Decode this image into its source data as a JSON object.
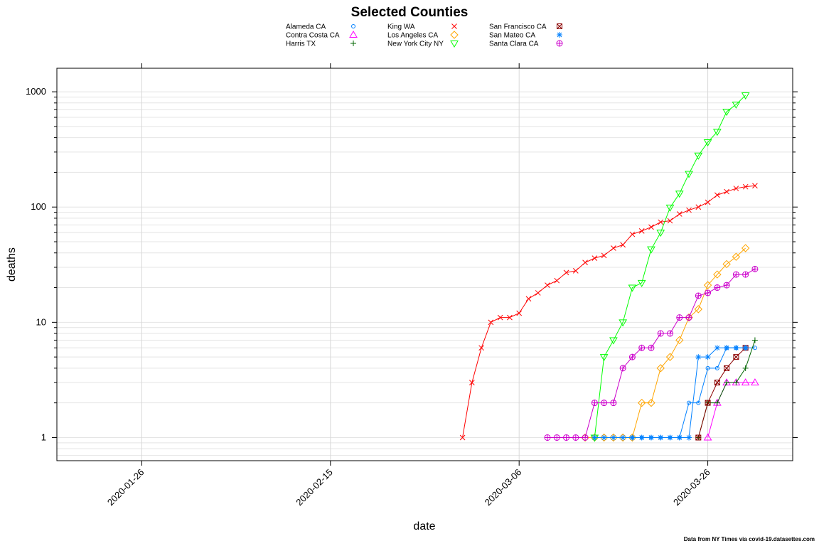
{
  "chart_data": {
    "type": "line",
    "title": "Selected Counties",
    "xlabel": "date",
    "ylabel": "deaths",
    "y_scale": "log",
    "ylim": [
      0.63,
      1600
    ],
    "x_domain": [
      "2020-01-17",
      "2020-04-04"
    ],
    "x_ticks": [
      "2020-01-26",
      "2020-02-15",
      "2020-03-06",
      "2020-03-26"
    ],
    "y_ticks": [
      1,
      10,
      100,
      1000
    ],
    "grid": true,
    "legend_position": "top",
    "source_note": "Data from NY Times via covid-19.datasettes.com",
    "series": [
      {
        "name": "Alameda CA",
        "color": "#0080ff",
        "marker": "circle",
        "points": [
          [
            "2020-03-18",
            1
          ],
          [
            "2020-03-19",
            1
          ],
          [
            "2020-03-20",
            1
          ],
          [
            "2020-03-21",
            1
          ],
          [
            "2020-03-22",
            1
          ],
          [
            "2020-03-23",
            1
          ],
          [
            "2020-03-24",
            2
          ],
          [
            "2020-03-25",
            2
          ],
          [
            "2020-03-26",
            4
          ],
          [
            "2020-03-27",
            4
          ],
          [
            "2020-03-28",
            6
          ],
          [
            "2020-03-29",
            6
          ],
          [
            "2020-03-30",
            6
          ],
          [
            "2020-03-31",
            6
          ]
        ]
      },
      {
        "name": "Contra Costa CA",
        "color": "#ff00ff",
        "marker": "triangle-up",
        "points": [
          [
            "2020-03-26",
            1
          ],
          [
            "2020-03-27",
            2
          ],
          [
            "2020-03-28",
            3
          ],
          [
            "2020-03-29",
            3
          ],
          [
            "2020-03-30",
            3
          ],
          [
            "2020-03-31",
            3
          ]
        ]
      },
      {
        "name": "Harris TX",
        "color": "#006400",
        "marker": "plus",
        "points": [
          [
            "2020-03-25",
            1
          ],
          [
            "2020-03-26",
            2
          ],
          [
            "2020-03-27",
            2
          ],
          [
            "2020-03-28",
            3
          ],
          [
            "2020-03-29",
            3
          ],
          [
            "2020-03-30",
            4
          ],
          [
            "2020-03-31",
            7
          ]
        ]
      },
      {
        "name": "King WA",
        "color": "#ff0000",
        "marker": "cross",
        "points": [
          [
            "2020-02-29",
            1
          ],
          [
            "2020-03-01",
            3
          ],
          [
            "2020-03-02",
            6
          ],
          [
            "2020-03-03",
            10
          ],
          [
            "2020-03-04",
            11
          ],
          [
            "2020-03-05",
            11
          ],
          [
            "2020-03-06",
            12
          ],
          [
            "2020-03-07",
            16
          ],
          [
            "2020-03-08",
            18
          ],
          [
            "2020-03-09",
            21
          ],
          [
            "2020-03-10",
            23
          ],
          [
            "2020-03-11",
            27
          ],
          [
            "2020-03-12",
            28
          ],
          [
            "2020-03-13",
            33
          ],
          [
            "2020-03-14",
            36
          ],
          [
            "2020-03-15",
            38
          ],
          [
            "2020-03-16",
            44
          ],
          [
            "2020-03-17",
            47
          ],
          [
            "2020-03-18",
            58
          ],
          [
            "2020-03-19",
            62
          ],
          [
            "2020-03-20",
            67
          ],
          [
            "2020-03-21",
            74
          ],
          [
            "2020-03-22",
            76
          ],
          [
            "2020-03-23",
            87
          ],
          [
            "2020-03-24",
            94
          ],
          [
            "2020-03-25",
            100
          ],
          [
            "2020-03-26",
            110
          ],
          [
            "2020-03-27",
            127
          ],
          [
            "2020-03-28",
            136
          ],
          [
            "2020-03-29",
            145
          ],
          [
            "2020-03-30",
            150
          ],
          [
            "2020-03-31",
            153
          ]
        ]
      },
      {
        "name": "Los Angeles CA",
        "color": "#ffa500",
        "marker": "diamond",
        "points": [
          [
            "2020-03-13",
            1
          ],
          [
            "2020-03-14",
            1
          ],
          [
            "2020-03-15",
            1
          ],
          [
            "2020-03-16",
            1
          ],
          [
            "2020-03-17",
            1
          ],
          [
            "2020-03-18",
            1
          ],
          [
            "2020-03-19",
            2
          ],
          [
            "2020-03-20",
            2
          ],
          [
            "2020-03-21",
            4
          ],
          [
            "2020-03-22",
            5
          ],
          [
            "2020-03-23",
            7
          ],
          [
            "2020-03-24",
            11
          ],
          [
            "2020-03-25",
            13
          ],
          [
            "2020-03-26",
            21
          ],
          [
            "2020-03-27",
            26
          ],
          [
            "2020-03-28",
            32
          ],
          [
            "2020-03-29",
            37
          ],
          [
            "2020-03-30",
            44
          ]
        ]
      },
      {
        "name": "New York City NY",
        "color": "#00ff00",
        "marker": "triangle-down",
        "points": [
          [
            "2020-03-14",
            1
          ],
          [
            "2020-03-15",
            5
          ],
          [
            "2020-03-16",
            7
          ],
          [
            "2020-03-17",
            10
          ],
          [
            "2020-03-18",
            20
          ],
          [
            "2020-03-19",
            22
          ],
          [
            "2020-03-20",
            43
          ],
          [
            "2020-03-21",
            60
          ],
          [
            "2020-03-22",
            99
          ],
          [
            "2020-03-23",
            131
          ],
          [
            "2020-03-24",
            194
          ],
          [
            "2020-03-25",
            280
          ],
          [
            "2020-03-26",
            365
          ],
          [
            "2020-03-27",
            450
          ],
          [
            "2020-03-28",
            672
          ],
          [
            "2020-03-29",
            776
          ],
          [
            "2020-03-30",
            932
          ]
        ]
      },
      {
        "name": "San Francisco CA",
        "color": "#8b0000",
        "marker": "boxed-x",
        "points": [
          [
            "2020-03-25",
            1
          ],
          [
            "2020-03-26",
            2
          ],
          [
            "2020-03-27",
            3
          ],
          [
            "2020-03-28",
            4
          ],
          [
            "2020-03-29",
            5
          ],
          [
            "2020-03-30",
            6
          ]
        ]
      },
      {
        "name": "San Mateo CA",
        "color": "#0080ff",
        "marker": "asterisk",
        "points": [
          [
            "2020-03-14",
            1
          ],
          [
            "2020-03-15",
            1
          ],
          [
            "2020-03-16",
            1
          ],
          [
            "2020-03-17",
            1
          ],
          [
            "2020-03-18",
            1
          ],
          [
            "2020-03-19",
            1
          ],
          [
            "2020-03-20",
            1
          ],
          [
            "2020-03-21",
            1
          ],
          [
            "2020-03-22",
            1
          ],
          [
            "2020-03-23",
            1
          ],
          [
            "2020-03-24",
            1
          ],
          [
            "2020-03-25",
            5
          ],
          [
            "2020-03-26",
            5
          ],
          [
            "2020-03-27",
            6
          ],
          [
            "2020-03-28",
            6
          ],
          [
            "2020-03-29",
            6
          ],
          [
            "2020-03-30",
            6
          ]
        ]
      },
      {
        "name": "Santa Clara CA",
        "color": "#cc00cc",
        "marker": "circle-plus",
        "points": [
          [
            "2020-03-09",
            1
          ],
          [
            "2020-03-10",
            1
          ],
          [
            "2020-03-11",
            1
          ],
          [
            "2020-03-12",
            1
          ],
          [
            "2020-03-13",
            1
          ],
          [
            "2020-03-14",
            2
          ],
          [
            "2020-03-15",
            2
          ],
          [
            "2020-03-16",
            2
          ],
          [
            "2020-03-17",
            4
          ],
          [
            "2020-03-18",
            5
          ],
          [
            "2020-03-19",
            6
          ],
          [
            "2020-03-20",
            6
          ],
          [
            "2020-03-21",
            8
          ],
          [
            "2020-03-22",
            8
          ],
          [
            "2020-03-23",
            11
          ],
          [
            "2020-03-24",
            11
          ],
          [
            "2020-03-25",
            17
          ],
          [
            "2020-03-26",
            18
          ],
          [
            "2020-03-27",
            20
          ],
          [
            "2020-03-28",
            21
          ],
          [
            "2020-03-29",
            26
          ],
          [
            "2020-03-30",
            26
          ],
          [
            "2020-03-31",
            29
          ]
        ]
      }
    ]
  }
}
